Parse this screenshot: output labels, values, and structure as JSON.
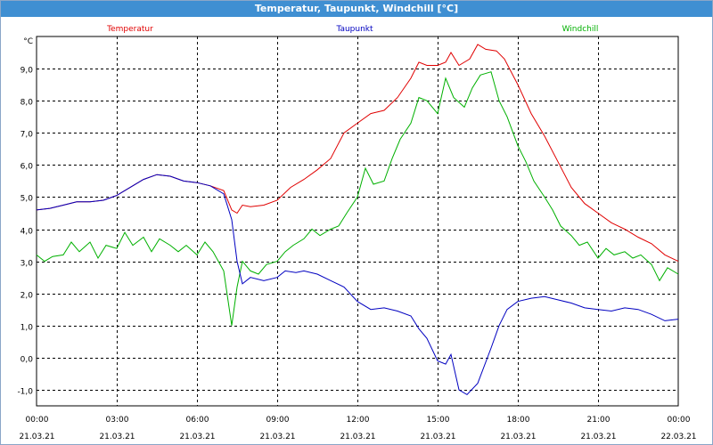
{
  "window": {
    "title": "Temperatur, Taupunkt, Windchill [°C]"
  },
  "chart_data": {
    "type": "line",
    "title": "Temperatur, Taupunkt, Windchill [°C]",
    "unit_label": "°C",
    "ylim": [
      -1.5,
      10.0
    ],
    "y_ticks": [
      -1.0,
      0.0,
      1.0,
      2.0,
      3.0,
      4.0,
      5.0,
      6.0,
      7.0,
      8.0,
      9.0
    ],
    "y_tick_labels": [
      "-1,0",
      "0,0",
      "1,0",
      "2,0",
      "3,0",
      "4,0",
      "5,0",
      "6,0",
      "7,0",
      "8,0",
      "9,0"
    ],
    "xlim": [
      0,
      24
    ],
    "x_ticks": [
      {
        "time": "00:00",
        "date": "21.03.21",
        "h": 0
      },
      {
        "time": "03:00",
        "date": "21.03.21",
        "h": 3
      },
      {
        "time": "06:00",
        "date": "21.03.21",
        "h": 6
      },
      {
        "time": "09:00",
        "date": "21.03.21",
        "h": 9
      },
      {
        "time": "12:00",
        "date": "21.03.21",
        "h": 12
      },
      {
        "time": "15:00",
        "date": "21.03.21",
        "h": 15
      },
      {
        "time": "18:00",
        "date": "21.03.21",
        "h": 18
      },
      {
        "time": "21:00",
        "date": "21.03.21",
        "h": 21
      },
      {
        "time": "00:00",
        "date": "22.03.21",
        "h": 24
      }
    ],
    "grid": true,
    "legend_placement": "top",
    "series": [
      {
        "name": "Temperatur",
        "color": "#e00000",
        "points": [
          [
            0,
            4.6
          ],
          [
            0.5,
            4.65
          ],
          [
            1,
            4.75
          ],
          [
            1.5,
            4.85
          ],
          [
            2,
            4.85
          ],
          [
            2.5,
            4.9
          ],
          [
            3,
            5.05
          ],
          [
            3.5,
            5.3
          ],
          [
            4,
            5.55
          ],
          [
            4.5,
            5.7
          ],
          [
            5,
            5.65
          ],
          [
            5.5,
            5.5
          ],
          [
            6,
            5.45
          ],
          [
            6.5,
            5.35
          ],
          [
            7,
            5.2
          ],
          [
            7.3,
            4.6
          ],
          [
            7.5,
            4.5
          ],
          [
            7.7,
            4.75
          ],
          [
            8,
            4.7
          ],
          [
            8.5,
            4.75
          ],
          [
            9,
            4.9
          ],
          [
            9.5,
            5.3
          ],
          [
            10,
            5.55
          ],
          [
            10.5,
            5.85
          ],
          [
            11,
            6.2
          ],
          [
            11.5,
            7.0
          ],
          [
            12,
            7.3
          ],
          [
            12.5,
            7.6
          ],
          [
            13,
            7.7
          ],
          [
            13.5,
            8.1
          ],
          [
            14,
            8.7
          ],
          [
            14.3,
            9.2
          ],
          [
            14.6,
            9.1
          ],
          [
            15,
            9.1
          ],
          [
            15.3,
            9.2
          ],
          [
            15.5,
            9.5
          ],
          [
            15.8,
            9.1
          ],
          [
            16.2,
            9.3
          ],
          [
            16.5,
            9.75
          ],
          [
            16.8,
            9.6
          ],
          [
            17.2,
            9.55
          ],
          [
            17.5,
            9.3
          ],
          [
            18,
            8.5
          ],
          [
            18.5,
            7.6
          ],
          [
            19,
            6.9
          ],
          [
            19.5,
            6.1
          ],
          [
            20,
            5.3
          ],
          [
            20.5,
            4.8
          ],
          [
            21,
            4.5
          ],
          [
            21.5,
            4.2
          ],
          [
            22,
            4.0
          ],
          [
            22.5,
            3.75
          ],
          [
            23,
            3.55
          ],
          [
            23.5,
            3.2
          ],
          [
            24,
            3.0
          ]
        ]
      },
      {
        "name": "Taupunkt",
        "color": "#0000c0",
        "points": [
          [
            0,
            4.6
          ],
          [
            0.5,
            4.65
          ],
          [
            1,
            4.75
          ],
          [
            1.5,
            4.85
          ],
          [
            2,
            4.85
          ],
          [
            2.5,
            4.9
          ],
          [
            3,
            5.05
          ],
          [
            3.5,
            5.3
          ],
          [
            4,
            5.55
          ],
          [
            4.5,
            5.7
          ],
          [
            5,
            5.65
          ],
          [
            5.5,
            5.5
          ],
          [
            6,
            5.45
          ],
          [
            6.5,
            5.35
          ],
          [
            7,
            5.1
          ],
          [
            7.3,
            4.3
          ],
          [
            7.5,
            3.0
          ],
          [
            7.7,
            2.3
          ],
          [
            8,
            2.5
          ],
          [
            8.5,
            2.4
          ],
          [
            9,
            2.5
          ],
          [
            9.3,
            2.7
          ],
          [
            9.7,
            2.65
          ],
          [
            10,
            2.7
          ],
          [
            10.5,
            2.6
          ],
          [
            11,
            2.4
          ],
          [
            11.5,
            2.2
          ],
          [
            12,
            1.75
          ],
          [
            12.5,
            1.5
          ],
          [
            13,
            1.55
          ],
          [
            13.5,
            1.45
          ],
          [
            14,
            1.3
          ],
          [
            14.3,
            0.9
          ],
          [
            14.6,
            0.6
          ],
          [
            15,
            -0.1
          ],
          [
            15.3,
            -0.2
          ],
          [
            15.5,
            0.1
          ],
          [
            15.8,
            -1.0
          ],
          [
            16.1,
            -1.15
          ],
          [
            16.5,
            -0.8
          ],
          [
            17,
            0.3
          ],
          [
            17.3,
            1.0
          ],
          [
            17.6,
            1.5
          ],
          [
            18,
            1.75
          ],
          [
            18.5,
            1.85
          ],
          [
            19,
            1.9
          ],
          [
            19.5,
            1.8
          ],
          [
            20,
            1.7
          ],
          [
            20.5,
            1.55
          ],
          [
            21,
            1.5
          ],
          [
            21.5,
            1.45
          ],
          [
            22,
            1.55
          ],
          [
            22.5,
            1.5
          ],
          [
            23,
            1.35
          ],
          [
            23.5,
            1.15
          ],
          [
            24,
            1.2
          ]
        ]
      },
      {
        "name": "Windchill",
        "color": "#00b000",
        "points": [
          [
            0,
            3.2
          ],
          [
            0.3,
            3.0
          ],
          [
            0.6,
            3.15
          ],
          [
            1,
            3.2
          ],
          [
            1.3,
            3.6
          ],
          [
            1.6,
            3.3
          ],
          [
            2,
            3.6
          ],
          [
            2.3,
            3.1
          ],
          [
            2.6,
            3.5
          ],
          [
            3,
            3.4
          ],
          [
            3.3,
            3.9
          ],
          [
            3.6,
            3.5
          ],
          [
            4,
            3.75
          ],
          [
            4.3,
            3.3
          ],
          [
            4.6,
            3.7
          ],
          [
            5,
            3.5
          ],
          [
            5.3,
            3.3
          ],
          [
            5.6,
            3.5
          ],
          [
            6,
            3.2
          ],
          [
            6.3,
            3.6
          ],
          [
            6.6,
            3.3
          ],
          [
            7,
            2.7
          ],
          [
            7.3,
            1.0
          ],
          [
            7.5,
            2.2
          ],
          [
            7.7,
            3.0
          ],
          [
            8,
            2.7
          ],
          [
            8.3,
            2.6
          ],
          [
            8.6,
            2.9
          ],
          [
            9,
            3.0
          ],
          [
            9.3,
            3.3
          ],
          [
            9.6,
            3.5
          ],
          [
            10,
            3.7
          ],
          [
            10.3,
            4.0
          ],
          [
            10.6,
            3.8
          ],
          [
            11,
            4.0
          ],
          [
            11.3,
            4.1
          ],
          [
            11.6,
            4.5
          ],
          [
            12,
            5.0
          ],
          [
            12.3,
            5.9
          ],
          [
            12.6,
            5.4
          ],
          [
            13,
            5.5
          ],
          [
            13.3,
            6.2
          ],
          [
            13.6,
            6.8
          ],
          [
            14,
            7.3
          ],
          [
            14.3,
            8.1
          ],
          [
            14.6,
            8.0
          ],
          [
            15,
            7.6
          ],
          [
            15.3,
            8.7
          ],
          [
            15.6,
            8.1
          ],
          [
            16,
            7.8
          ],
          [
            16.3,
            8.4
          ],
          [
            16.6,
            8.8
          ],
          [
            17,
            8.9
          ],
          [
            17.3,
            8.0
          ],
          [
            17.6,
            7.5
          ],
          [
            18,
            6.6
          ],
          [
            18.3,
            6.1
          ],
          [
            18.6,
            5.5
          ],
          [
            19,
            5.0
          ],
          [
            19.3,
            4.6
          ],
          [
            19.6,
            4.1
          ],
          [
            20,
            3.8
          ],
          [
            20.3,
            3.5
          ],
          [
            20.6,
            3.6
          ],
          [
            21,
            3.1
          ],
          [
            21.3,
            3.4
          ],
          [
            21.6,
            3.2
          ],
          [
            22,
            3.3
          ],
          [
            22.3,
            3.1
          ],
          [
            22.6,
            3.2
          ],
          [
            23,
            2.9
          ],
          [
            23.3,
            2.4
          ],
          [
            23.6,
            2.8
          ],
          [
            24,
            2.6
          ]
        ]
      }
    ]
  }
}
